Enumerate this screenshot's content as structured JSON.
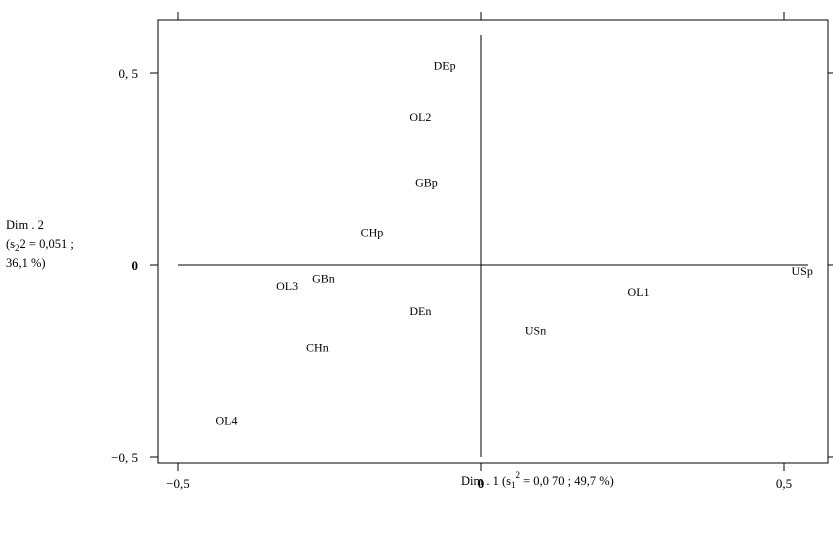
{
  "chart_data": {
    "type": "scatter",
    "xlabel_parts": [
      "Dim . 1  (s",
      "1",
      "2",
      " = 0,0 70 ;  49,7 %)"
    ],
    "ylabel_lines": [
      "Dim . 2",
      "(s",
      "2",
      "2 = 0,051 ;",
      "36,1 %)"
    ],
    "xlim": [
      -0.5,
      0.58
    ],
    "ylim": [
      -0.56,
      0.63
    ],
    "x_ticks": [
      {
        "value": -0.5,
        "label": "−0,5"
      },
      {
        "value": 0,
        "label": "0"
      },
      {
        "value": 0.5,
        "label": "0,5"
      }
    ],
    "y_ticks": [
      {
        "value": 0.5,
        "label": "0, 5"
      },
      {
        "value": 0,
        "label": "0"
      },
      {
        "value": -0.5,
        "label": "−0, 5"
      }
    ],
    "points": [
      {
        "label": "DEp",
        "x": -0.06,
        "y": 0.52
      },
      {
        "label": "OL2",
        "x": -0.1,
        "y": 0.385
      },
      {
        "label": "GBp",
        "x": -0.09,
        "y": 0.215
      },
      {
        "label": "CHp",
        "x": -0.18,
        "y": 0.085
      },
      {
        "label": "GBn",
        "x": -0.26,
        "y": -0.035
      },
      {
        "label": "OL3",
        "x": -0.32,
        "y": -0.055
      },
      {
        "label": "DEn",
        "x": -0.1,
        "y": -0.12
      },
      {
        "label": "CHn",
        "x": -0.27,
        "y": -0.215
      },
      {
        "label": "OL4",
        "x": -0.42,
        "y": -0.405
      },
      {
        "label": "USn",
        "x": 0.09,
        "y": -0.17
      },
      {
        "label": "OL1",
        "x": 0.26,
        "y": -0.07
      },
      {
        "label": "USp",
        "x": 0.53,
        "y": -0.015
      }
    ]
  }
}
